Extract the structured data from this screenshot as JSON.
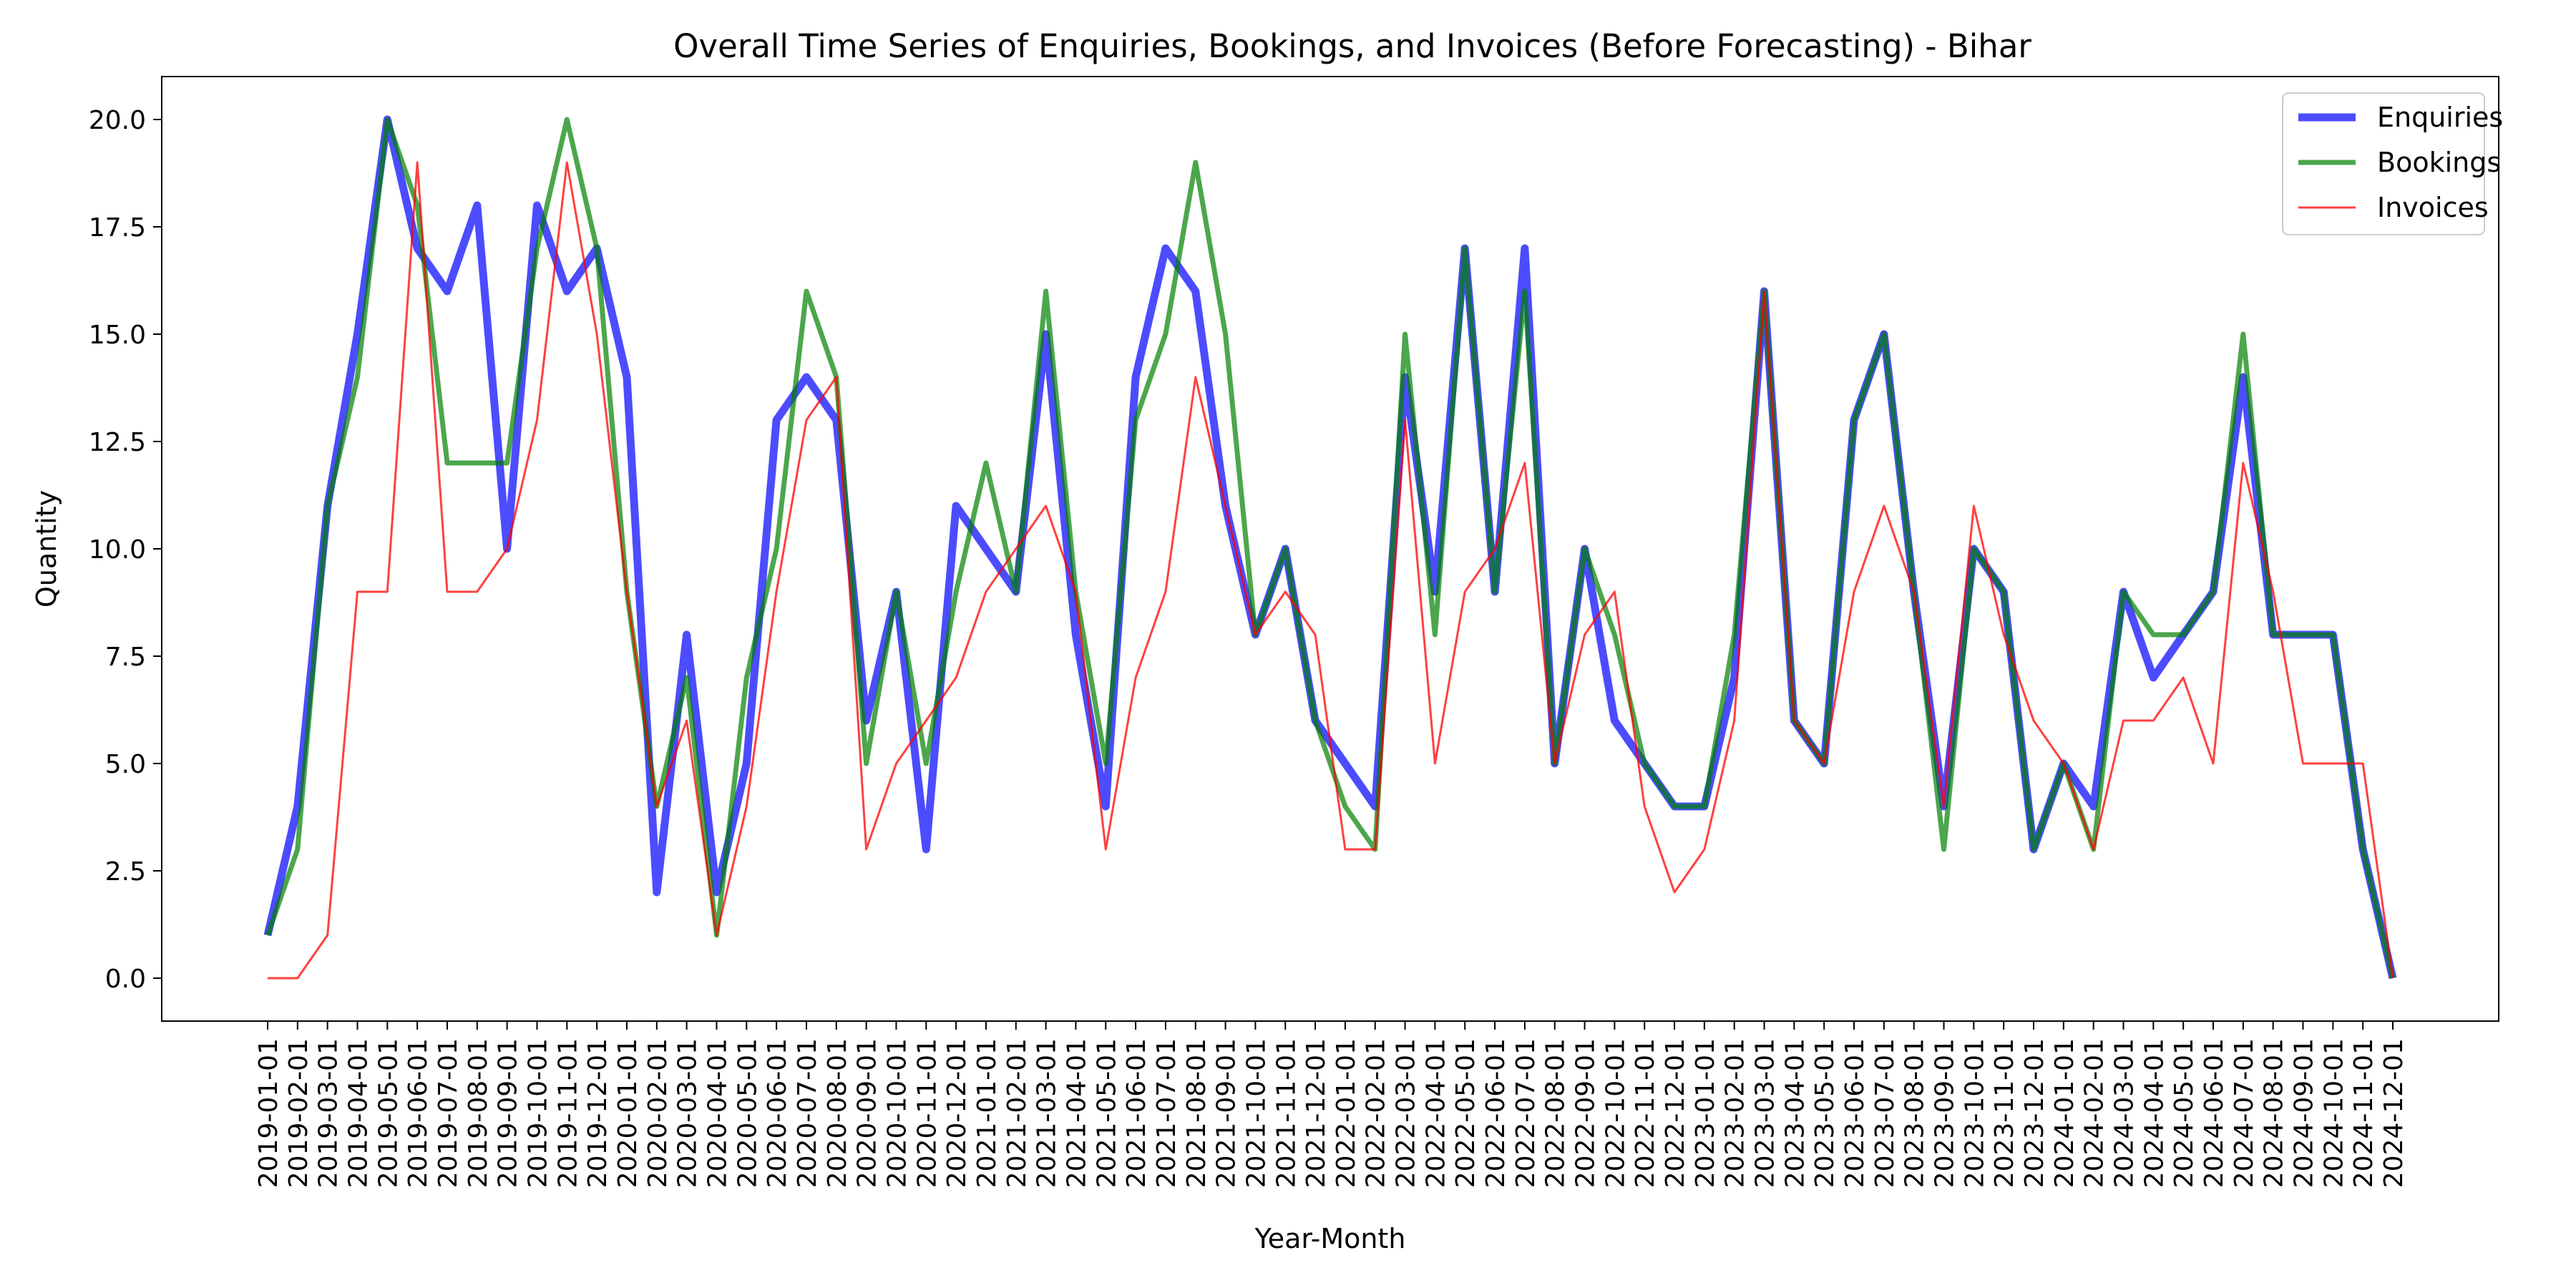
{
  "chart_data": {
    "type": "line",
    "title": "Overall Time Series of Enquiries, Bookings, and Invoices (Before Forecasting) - Bihar",
    "xlabel": "Year-Month",
    "ylabel": "Quantity",
    "ylim": [
      -1.0,
      21.0
    ],
    "y_ticks": [
      "0.0",
      "2.5",
      "5.0",
      "7.5",
      "10.0",
      "12.5",
      "15.0",
      "17.5",
      "20.0"
    ],
    "legend_position": "top-right",
    "grid": false,
    "x": [
      "2019-01-01",
      "2019-02-01",
      "2019-03-01",
      "2019-04-01",
      "2019-05-01",
      "2019-06-01",
      "2019-07-01",
      "2019-08-01",
      "2019-09-01",
      "2019-10-01",
      "2019-11-01",
      "2019-12-01",
      "2020-01-01",
      "2020-02-01",
      "2020-03-01",
      "2020-04-01",
      "2020-05-01",
      "2020-06-01",
      "2020-07-01",
      "2020-08-01",
      "2020-09-01",
      "2020-10-01",
      "2020-11-01",
      "2020-12-01",
      "2021-01-01",
      "2021-02-01",
      "2021-03-01",
      "2021-04-01",
      "2021-05-01",
      "2021-06-01",
      "2021-07-01",
      "2021-08-01",
      "2021-09-01",
      "2021-10-01",
      "2021-11-01",
      "2021-12-01",
      "2022-01-01",
      "2022-02-01",
      "2022-03-01",
      "2022-04-01",
      "2022-05-01",
      "2022-06-01",
      "2022-07-01",
      "2022-08-01",
      "2022-09-01",
      "2022-10-01",
      "2022-11-01",
      "2022-12-01",
      "2023-01-01",
      "2023-02-01",
      "2023-03-01",
      "2023-04-01",
      "2023-05-01",
      "2023-06-01",
      "2023-07-01",
      "2023-08-01",
      "2023-09-01",
      "2023-10-01",
      "2023-11-01",
      "2023-12-01",
      "2024-01-01",
      "2024-02-01",
      "2024-03-01",
      "2024-04-01",
      "2024-05-01",
      "2024-06-01",
      "2024-07-01",
      "2024-08-01",
      "2024-09-01",
      "2024-10-01",
      "2024-11-01",
      "2024-12-01"
    ],
    "series": [
      {
        "name": "Enquiries",
        "color": "#0000ff",
        "values": [
          1,
          4,
          11,
          15,
          20,
          17,
          16,
          18,
          10,
          18,
          16,
          17,
          14,
          2,
          8,
          2,
          5,
          13,
          14,
          13,
          6,
          9,
          3,
          11,
          10,
          9,
          15,
          8,
          4,
          14,
          17,
          16,
          11,
          8,
          10,
          6,
          5,
          4,
          14,
          9,
          17,
          9,
          17,
          5,
          10,
          6,
          5,
          4,
          4,
          7,
          16,
          6,
          5,
          13,
          15,
          9,
          4,
          10,
          9,
          3,
          5,
          4,
          9,
          7,
          8,
          9,
          14,
          8,
          8,
          8,
          3,
          0
        ]
      },
      {
        "name": "Bookings",
        "color": "#008000",
        "values": [
          1,
          3,
          11,
          14,
          20,
          18,
          12,
          12,
          12,
          17,
          20,
          17,
          9,
          4,
          7,
          1,
          7,
          10,
          16,
          14,
          5,
          9,
          5,
          9,
          12,
          9,
          16,
          9,
          5,
          13,
          15,
          19,
          15,
          8,
          10,
          6,
          4,
          3,
          15,
          8,
          17,
          9,
          16,
          5,
          10,
          8,
          5,
          4,
          4,
          8,
          16,
          6,
          5,
          13,
          15,
          9,
          3,
          10,
          9,
          3,
          5,
          3,
          9,
          8,
          8,
          9,
          15,
          8,
          8,
          8,
          3,
          0
        ]
      },
      {
        "name": "Invoices",
        "color": "#ff0000",
        "values": [
          0,
          0,
          1,
          9,
          9,
          19,
          9,
          9,
          10,
          13,
          19,
          15,
          9,
          4,
          6,
          1,
          4,
          9,
          13,
          14,
          3,
          5,
          6,
          7,
          9,
          10,
          11,
          9,
          3,
          7,
          9,
          14,
          11,
          8,
          9,
          8,
          3,
          3,
          13,
          5,
          9,
          10,
          12,
          5,
          8,
          9,
          4,
          2,
          3,
          6,
          16,
          6,
          5,
          9,
          11,
          9,
          4,
          11,
          8,
          6,
          5,
          3,
          6,
          6,
          7,
          5,
          12,
          9,
          5,
          5,
          5,
          0
        ]
      }
    ]
  }
}
